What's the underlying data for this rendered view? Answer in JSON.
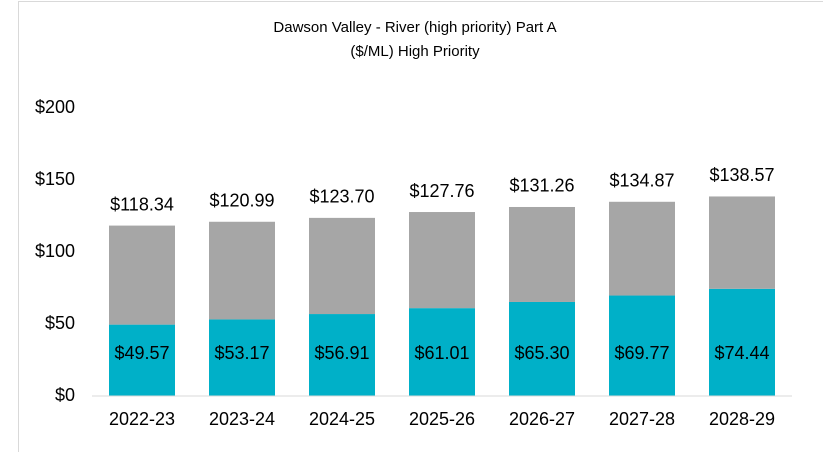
{
  "chart_data": {
    "type": "stacked_bar",
    "title": [
      "Dawson Valley - River (high priority) Part A",
      "($/ML) High Priority"
    ],
    "categories": [
      "2022-23",
      "2023-24",
      "2024-25",
      "2025-26",
      "2026-27",
      "2027-28",
      "2028-29"
    ],
    "series": [
      {
        "color": "#00b0c8",
        "values": [
          49.57,
          53.17,
          56.91,
          61.01,
          65.3,
          69.77,
          74.44
        ],
        "value_labels": [
          "$49.57",
          "$53.17",
          "$56.91",
          "$61.01",
          "$65.30",
          "$69.77",
          "$74.44"
        ]
      },
      {
        "color": "#a6a6a6",
        "values": [
          68.77,
          67.82,
          66.79,
          66.75,
          65.96,
          65.1,
          64.13
        ]
      }
    ],
    "totals": {
      "values": [
        118.34,
        120.99,
        123.7,
        127.76,
        131.26,
        134.87,
        138.57
      ],
      "value_labels": [
        "$118.34",
        "$120.99",
        "$123.70",
        "$127.76",
        "$131.26",
        "$134.87",
        "$138.57"
      ]
    },
    "ylim": [
      0,
      200
    ],
    "yticks": [
      {
        "value": 0,
        "label": "$0"
      },
      {
        "value": 50,
        "label": "$50"
      },
      {
        "value": 100,
        "label": "$100"
      },
      {
        "value": 150,
        "label": "$150"
      },
      {
        "value": 200,
        "label": "$200"
      }
    ],
    "grid": false
  }
}
